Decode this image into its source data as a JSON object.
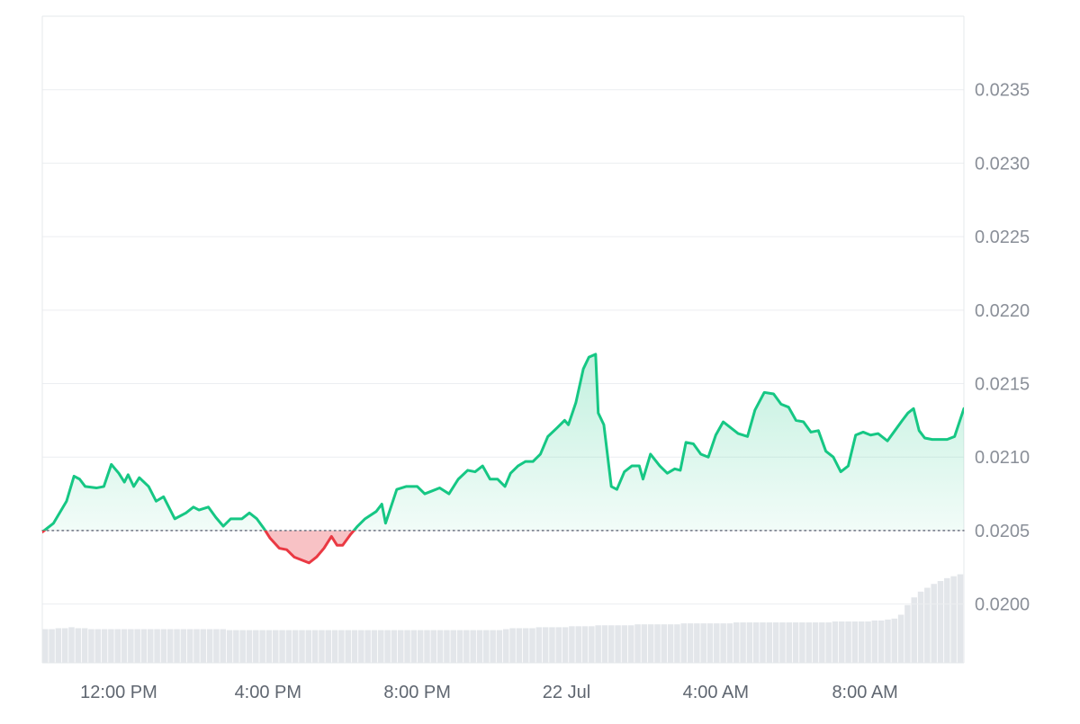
{
  "chart_data": {
    "type": "area",
    "baseline": 0.0205,
    "ylim": [
      0.0196,
      0.024
    ],
    "grid": true,
    "colors": {
      "up_line": "#16c784",
      "up_fill": "#16c784",
      "down_line": "#ea3943",
      "down_fill": "#f7b7bb",
      "grid": "#eceef1",
      "baseline": "#6b7280",
      "volume": "#e3e6ea",
      "frame": "#e6e8eb"
    },
    "y_ticks": [
      {
        "value": 0.02,
        "label": "0.0200"
      },
      {
        "value": 0.0205,
        "label": "0.0205"
      },
      {
        "value": 0.021,
        "label": "0.0210"
      },
      {
        "value": 0.0215,
        "label": "0.0215"
      },
      {
        "value": 0.022,
        "label": "0.0220"
      },
      {
        "value": 0.0225,
        "label": "0.0225"
      },
      {
        "value": 0.023,
        "label": "0.0230"
      },
      {
        "value": 0.0235,
        "label": "0.0235"
      }
    ],
    "x_range_hours": [
      -2.05,
      22.65
    ],
    "x_ticks": [
      {
        "t": 0,
        "label": "12:00 PM"
      },
      {
        "t": 4,
        "label": "4:00 PM"
      },
      {
        "t": 8,
        "label": "8:00 PM"
      },
      {
        "t": 12,
        "label": "22 Jul"
      },
      {
        "t": 16,
        "label": "4:00 AM"
      },
      {
        "t": 20,
        "label": "8:00 AM"
      }
    ],
    "series": [
      {
        "values": [
          [
            -2.05,
            0.02049
          ],
          [
            -1.75,
            0.02055
          ],
          [
            -1.4,
            0.0207
          ],
          [
            -1.2,
            0.02087
          ],
          [
            -1.05,
            0.02085
          ],
          [
            -0.9,
            0.0208
          ],
          [
            -0.6,
            0.02079
          ],
          [
            -0.4,
            0.0208
          ],
          [
            -0.2,
            0.02095
          ],
          [
            0.0,
            0.02089
          ],
          [
            0.15,
            0.02083
          ],
          [
            0.25,
            0.02088
          ],
          [
            0.4,
            0.0208
          ],
          [
            0.55,
            0.02086
          ],
          [
            0.8,
            0.0208
          ],
          [
            1.0,
            0.0207
          ],
          [
            1.2,
            0.02073
          ],
          [
            1.5,
            0.02058
          ],
          [
            1.8,
            0.02062
          ],
          [
            2.0,
            0.02066
          ],
          [
            2.15,
            0.02064
          ],
          [
            2.4,
            0.02066
          ],
          [
            2.6,
            0.02059
          ],
          [
            2.8,
            0.02053
          ],
          [
            3.0,
            0.02058
          ],
          [
            3.3,
            0.02058
          ],
          [
            3.5,
            0.02062
          ],
          [
            3.7,
            0.02058
          ],
          [
            3.9,
            0.02051
          ],
          [
            4.05,
            0.02045
          ],
          [
            4.3,
            0.02038
          ],
          [
            4.5,
            0.02037
          ],
          [
            4.7,
            0.02032
          ],
          [
            4.9,
            0.0203
          ],
          [
            5.1,
            0.02028
          ],
          [
            5.3,
            0.02032
          ],
          [
            5.5,
            0.02038
          ],
          [
            5.7,
            0.02046
          ],
          [
            5.85,
            0.0204
          ],
          [
            6.0,
            0.0204
          ],
          [
            6.2,
            0.02047
          ],
          [
            6.4,
            0.02053
          ],
          [
            6.6,
            0.02058
          ],
          [
            6.9,
            0.02063
          ],
          [
            7.05,
            0.02068
          ],
          [
            7.15,
            0.02055
          ],
          [
            7.45,
            0.02078
          ],
          [
            7.7,
            0.0208
          ],
          [
            8.0,
            0.0208
          ],
          [
            8.2,
            0.02075
          ],
          [
            8.4,
            0.02077
          ],
          [
            8.6,
            0.02079
          ],
          [
            8.85,
            0.02075
          ],
          [
            9.1,
            0.02085
          ],
          [
            9.35,
            0.02091
          ],
          [
            9.55,
            0.0209
          ],
          [
            9.75,
            0.02094
          ],
          [
            9.95,
            0.02085
          ],
          [
            10.15,
            0.02085
          ],
          [
            10.35,
            0.0208
          ],
          [
            10.5,
            0.02089
          ],
          [
            10.7,
            0.02094
          ],
          [
            10.9,
            0.02097
          ],
          [
            11.1,
            0.02097
          ],
          [
            11.3,
            0.02102
          ],
          [
            11.5,
            0.02114
          ],
          [
            11.75,
            0.0212
          ],
          [
            11.95,
            0.02125
          ],
          [
            12.05,
            0.02122
          ],
          [
            12.25,
            0.02137
          ],
          [
            12.45,
            0.0216
          ],
          [
            12.6,
            0.02168
          ],
          [
            12.78,
            0.0217
          ],
          [
            12.85,
            0.0213
          ],
          [
            13.0,
            0.02122
          ],
          [
            13.2,
            0.0208
          ],
          [
            13.35,
            0.02078
          ],
          [
            13.55,
            0.0209
          ],
          [
            13.75,
            0.02094
          ],
          [
            13.95,
            0.02094
          ],
          [
            14.05,
            0.02085
          ],
          [
            14.25,
            0.02102
          ],
          [
            14.5,
            0.02094
          ],
          [
            14.7,
            0.02089
          ],
          [
            14.9,
            0.02092
          ],
          [
            15.05,
            0.02091
          ],
          [
            15.2,
            0.0211
          ],
          [
            15.4,
            0.02109
          ],
          [
            15.6,
            0.02102
          ],
          [
            15.8,
            0.021
          ],
          [
            16.0,
            0.02115
          ],
          [
            16.2,
            0.02124
          ],
          [
            16.4,
            0.0212
          ],
          [
            16.6,
            0.02116
          ],
          [
            16.85,
            0.02114
          ],
          [
            17.05,
            0.02132
          ],
          [
            17.3,
            0.02144
          ],
          [
            17.55,
            0.02143
          ],
          [
            17.75,
            0.02136
          ],
          [
            17.95,
            0.02134
          ],
          [
            18.15,
            0.02125
          ],
          [
            18.35,
            0.02124
          ],
          [
            18.55,
            0.02117
          ],
          [
            18.75,
            0.02118
          ],
          [
            18.95,
            0.02104
          ],
          [
            19.15,
            0.021
          ],
          [
            19.35,
            0.0209
          ],
          [
            19.55,
            0.02094
          ],
          [
            19.75,
            0.02115
          ],
          [
            19.95,
            0.02117
          ],
          [
            20.15,
            0.02115
          ],
          [
            20.35,
            0.02116
          ],
          [
            20.6,
            0.02111
          ],
          [
            20.8,
            0.02118
          ],
          [
            21.0,
            0.02125
          ],
          [
            21.15,
            0.0213
          ],
          [
            21.3,
            0.02133
          ],
          [
            21.45,
            0.02118
          ],
          [
            21.6,
            0.02113
          ],
          [
            21.8,
            0.02112
          ],
          [
            22.0,
            0.02112
          ],
          [
            22.2,
            0.02112
          ],
          [
            22.4,
            0.02114
          ],
          [
            22.65,
            0.02133
          ]
        ]
      }
    ],
    "volume": [
      0.35,
      0.35,
      0.36,
      0.36,
      0.37,
      0.36,
      0.36,
      0.35,
      0.35,
      0.35,
      0.35,
      0.35,
      0.35,
      0.35,
      0.35,
      0.35,
      0.35,
      0.35,
      0.35,
      0.35,
      0.35,
      0.35,
      0.35,
      0.35,
      0.35,
      0.35,
      0.35,
      0.35,
      0.34,
      0.34,
      0.34,
      0.34,
      0.34,
      0.34,
      0.34,
      0.34,
      0.34,
      0.34,
      0.34,
      0.34,
      0.34,
      0.34,
      0.34,
      0.34,
      0.34,
      0.34,
      0.34,
      0.34,
      0.34,
      0.34,
      0.34,
      0.34,
      0.34,
      0.34,
      0.34,
      0.34,
      0.34,
      0.34,
      0.34,
      0.34,
      0.34,
      0.34,
      0.34,
      0.34,
      0.34,
      0.34,
      0.34,
      0.34,
      0.34,
      0.34,
      0.35,
      0.36,
      0.36,
      0.36,
      0.36,
      0.37,
      0.37,
      0.37,
      0.37,
      0.37,
      0.38,
      0.38,
      0.38,
      0.38,
      0.39,
      0.39,
      0.39,
      0.39,
      0.39,
      0.39,
      0.4,
      0.4,
      0.4,
      0.4,
      0.4,
      0.4,
      0.4,
      0.41,
      0.41,
      0.41,
      0.41,
      0.41,
      0.41,
      0.41,
      0.41,
      0.42,
      0.42,
      0.42,
      0.42,
      0.42,
      0.42,
      0.42,
      0.42,
      0.42,
      0.42,
      0.42,
      0.42,
      0.42,
      0.42,
      0.42,
      0.43,
      0.43,
      0.43,
      0.43,
      0.43,
      0.43,
      0.44,
      0.44,
      0.45,
      0.46,
      0.5,
      0.6,
      0.68,
      0.74,
      0.78,
      0.82,
      0.85,
      0.88,
      0.9,
      0.92
    ]
  }
}
